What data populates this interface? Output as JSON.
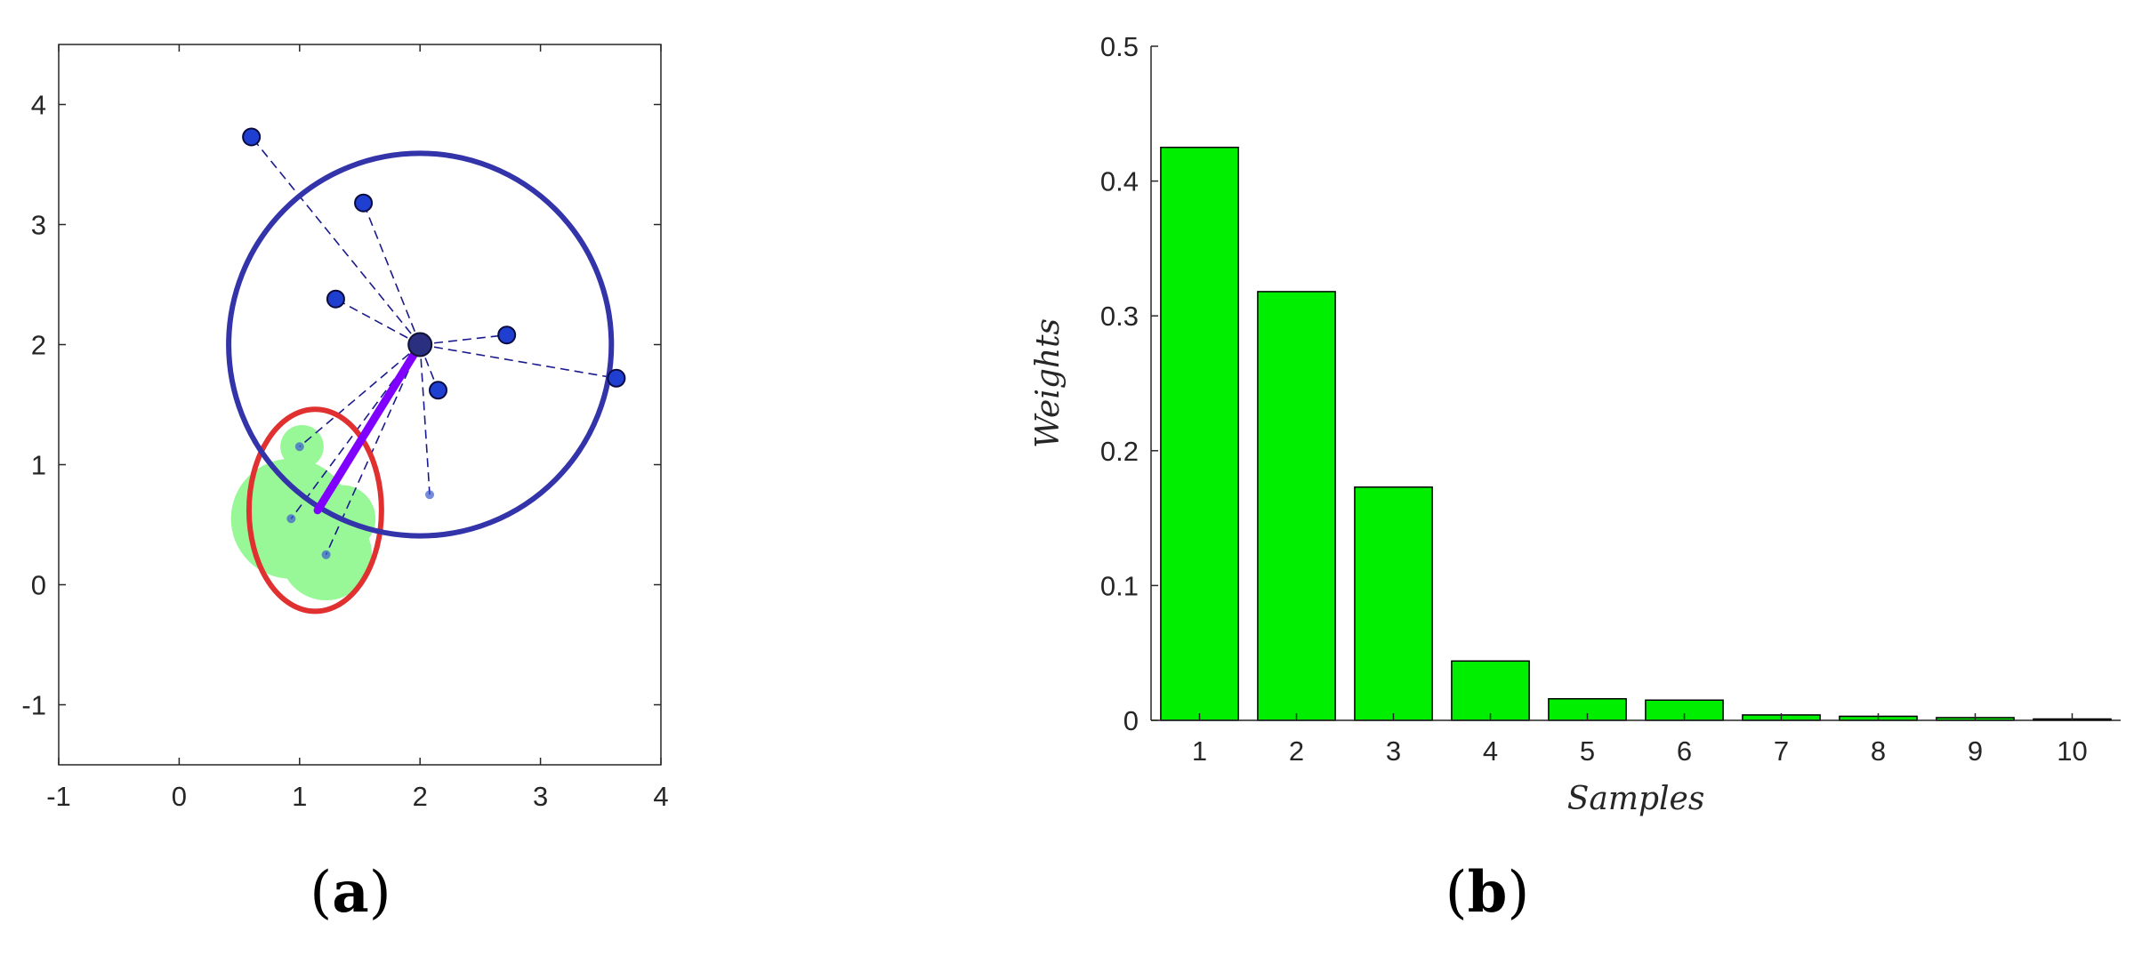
{
  "chart_data": [
    {
      "type": "scatter",
      "panel_label": {
        "open": "(",
        "letter": "a",
        "close": ")"
      },
      "xlim": [
        -1,
        4
      ],
      "ylim": [
        -1.5,
        4.5
      ],
      "xticks": [
        -1,
        0,
        1,
        2,
        3,
        4
      ],
      "yticks": [
        -1,
        0,
        1,
        2,
        3,
        4
      ],
      "center": [
        2.0,
        2.0
      ],
      "points": [
        [
          0.6,
          3.73
        ],
        [
          1.53,
          3.18
        ],
        [
          1.3,
          2.38
        ],
        [
          2.72,
          2.08
        ],
        [
          3.63,
          1.72
        ],
        [
          2.15,
          1.62
        ]
      ],
      "faint_points": [
        [
          1.0,
          1.15
        ],
        [
          0.93,
          0.55
        ],
        [
          1.22,
          0.25
        ],
        [
          2.08,
          0.75
        ]
      ],
      "green_circles": [
        {
          "cx": 1.02,
          "cy": 1.15,
          "r": 0.18
        },
        {
          "cx": 0.93,
          "cy": 0.55,
          "r": 0.5
        },
        {
          "cx": 1.22,
          "cy": 0.25,
          "r": 0.38
        },
        {
          "cx": 1.35,
          "cy": 0.55,
          "r": 0.28
        }
      ],
      "blue_circle": {
        "cx": 2.0,
        "cy": 2.0,
        "r": 1.19,
        "color": "#3333aa"
      },
      "red_ellipse": {
        "cx": 1.13,
        "cy": 0.62,
        "rx": 1.1,
        "ry": 1.7,
        "color": "#e03030"
      },
      "purple_segment": {
        "from": [
          2.0,
          2.0
        ],
        "to": [
          1.15,
          0.62
        ],
        "color": "#8000ff"
      },
      "point_color": "#1f3fd0",
      "green_color": "#98f898"
    },
    {
      "type": "bar",
      "panel_label": {
        "open": "(",
        "letter": "b",
        "close": ")"
      },
      "categories": [
        "1",
        "2",
        "3",
        "4",
        "5",
        "6",
        "7",
        "8",
        "9",
        "10"
      ],
      "values": [
        0.425,
        0.318,
        0.173,
        0.044,
        0.016,
        0.015,
        0.004,
        0.003,
        0.002,
        0.001
      ],
      "xlabel": "Samples",
      "ylabel": "Weights",
      "ylim": [
        0,
        0.5
      ],
      "yticks": [
        "0",
        "0.1",
        "0.2",
        "0.3",
        "0.4",
        "0.5"
      ],
      "bar_color": "#00ee00"
    }
  ]
}
